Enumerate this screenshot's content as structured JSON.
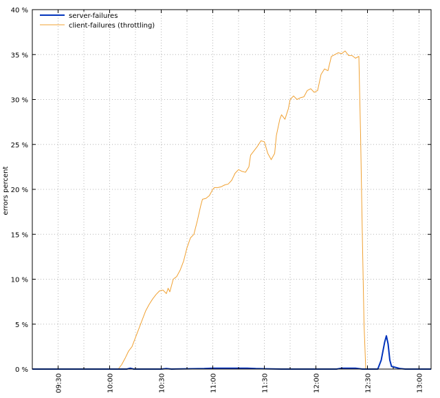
{
  "chart_data": {
    "type": "line",
    "title": "",
    "xlabel": "",
    "ylabel": "errors percent",
    "ylim": [
      0,
      40
    ],
    "xlim": [
      "09:15",
      "13:07"
    ],
    "yticks": [
      0,
      5,
      10,
      15,
      20,
      25,
      30,
      35,
      40
    ],
    "ytick_labels": [
      "0 %",
      "5 %",
      "10 %",
      "15 %",
      "20 %",
      "25 %",
      "30 %",
      "35 %",
      "40 %"
    ],
    "xticks": [
      "09:30",
      "10:00",
      "10:30",
      "11:00",
      "11:30",
      "12:00",
      "12:30",
      "13:00"
    ],
    "grid": true,
    "legend_position": "top-left",
    "series": [
      {
        "name": "server-failures",
        "color": "#0033bb",
        "points": [
          [
            "09:15",
            0
          ],
          [
            "10:10",
            0
          ],
          [
            "10:12",
            0.1
          ],
          [
            "10:14",
            0
          ],
          [
            "10:30",
            0
          ],
          [
            "10:33",
            0.05
          ],
          [
            "10:36",
            0
          ],
          [
            "10:55",
            0.05
          ],
          [
            "11:00",
            0.1
          ],
          [
            "11:10",
            0.1
          ],
          [
            "11:20",
            0.1
          ],
          [
            "11:25",
            0.05
          ],
          [
            "11:40",
            0
          ],
          [
            "12:12",
            0
          ],
          [
            "12:15",
            0.1
          ],
          [
            "12:23",
            0.1
          ],
          [
            "12:27",
            0
          ],
          [
            "12:36",
            0
          ],
          [
            "12:38",
            1.0
          ],
          [
            "12:40",
            3.0
          ],
          [
            "12:41",
            3.7
          ],
          [
            "12:42",
            2.8
          ],
          [
            "12:43",
            1.0
          ],
          [
            "12:44",
            0.3
          ],
          [
            "12:47",
            0.15
          ],
          [
            "12:49",
            0.05
          ],
          [
            "12:52",
            0
          ],
          [
            "13:07",
            0
          ]
        ]
      },
      {
        "name": "client-failures (throttling)",
        "color": "#f0a030",
        "points": [
          [
            "09:15",
            0
          ],
          [
            "10:05",
            0
          ],
          [
            "10:07",
            0.5
          ],
          [
            "10:09",
            1.2
          ],
          [
            "10:11",
            2.0
          ],
          [
            "10:13",
            2.5
          ],
          [
            "10:15",
            3.5
          ],
          [
            "10:17",
            4.5
          ],
          [
            "10:19",
            5.5
          ],
          [
            "10:21",
            6.5
          ],
          [
            "10:23",
            7.2
          ],
          [
            "10:25",
            7.8
          ],
          [
            "10:27",
            8.3
          ],
          [
            "10:29",
            8.7
          ],
          [
            "10:31",
            8.8
          ],
          [
            "10:33",
            8.4
          ],
          [
            "10:34",
            9.0
          ],
          [
            "10:35",
            8.6
          ],
          [
            "10:37",
            10.0
          ],
          [
            "10:39",
            10.3
          ],
          [
            "10:41",
            11.0
          ],
          [
            "10:43",
            12.0
          ],
          [
            "10:45",
            13.5
          ],
          [
            "10:47",
            14.6
          ],
          [
            "10:49",
            15.0
          ],
          [
            "10:51",
            16.5
          ],
          [
            "10:53",
            18.2
          ],
          [
            "10:54",
            18.9
          ],
          [
            "10:56",
            19.0
          ],
          [
            "10:58",
            19.3
          ],
          [
            "11:00",
            20.0
          ],
          [
            "11:01",
            20.2
          ],
          [
            "11:03",
            20.2
          ],
          [
            "11:05",
            20.3
          ],
          [
            "11:07",
            20.5
          ],
          [
            "11:09",
            20.6
          ],
          [
            "11:11",
            21.0
          ],
          [
            "11:13",
            21.8
          ],
          [
            "11:15",
            22.2
          ],
          [
            "11:17",
            22.0
          ],
          [
            "11:19",
            21.9
          ],
          [
            "11:21",
            22.5
          ],
          [
            "11:22",
            23.8
          ],
          [
            "11:24",
            24.3
          ],
          [
            "11:26",
            24.8
          ],
          [
            "11:28",
            25.4
          ],
          [
            "11:30",
            25.3
          ],
          [
            "11:32",
            24.0
          ],
          [
            "11:34",
            23.3
          ],
          [
            "11:36",
            24.0
          ],
          [
            "11:37",
            26.0
          ],
          [
            "11:39",
            27.8
          ],
          [
            "11:40",
            28.3
          ],
          [
            "11:42",
            27.8
          ],
          [
            "11:44",
            29.0
          ],
          [
            "11:45",
            30.0
          ],
          [
            "11:47",
            30.4
          ],
          [
            "11:49",
            30.0
          ],
          [
            "11:51",
            30.2
          ],
          [
            "11:53",
            30.3
          ],
          [
            "11:55",
            31.0
          ],
          [
            "11:57",
            31.2
          ],
          [
            "11:59",
            30.8
          ],
          [
            "12:01",
            31.0
          ],
          [
            "12:03",
            32.8
          ],
          [
            "12:05",
            33.4
          ],
          [
            "12:07",
            33.2
          ],
          [
            "12:09",
            34.8
          ],
          [
            "12:11",
            35.0
          ],
          [
            "12:13",
            35.2
          ],
          [
            "12:15",
            35.1
          ],
          [
            "12:17",
            35.4
          ],
          [
            "12:19",
            34.9
          ],
          [
            "12:21",
            34.9
          ],
          [
            "12:23",
            34.6
          ],
          [
            "12:25",
            34.8
          ],
          [
            "12:26",
            26.0
          ],
          [
            "12:27",
            15.0
          ],
          [
            "12:28",
            5.0
          ],
          [
            "12:29",
            0
          ],
          [
            "13:07",
            0
          ]
        ]
      }
    ]
  }
}
